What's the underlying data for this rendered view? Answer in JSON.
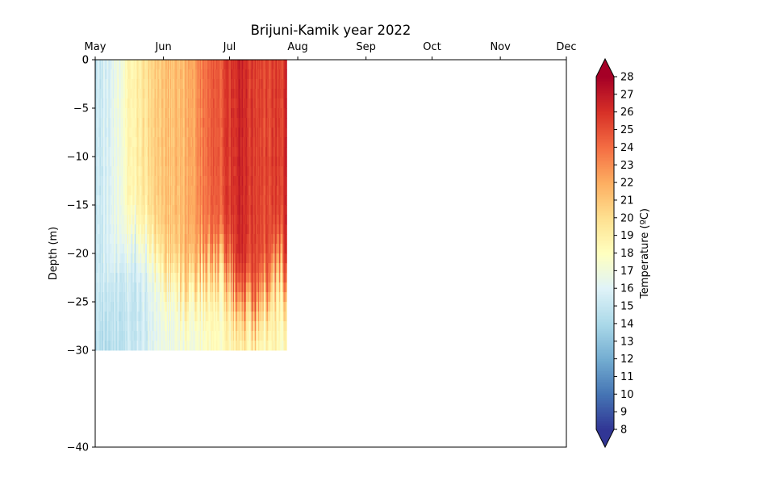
{
  "chart_data": {
    "type": "heatmap",
    "title": "Brijuni-Kamik year 2022",
    "ylabel": "Depth (m)",
    "colorbar_label": "Temperature (ºC)",
    "x_axis": {
      "position": "top",
      "tick_labels": [
        "May",
        "Jun",
        "Jul",
        "Aug",
        "Sep",
        "Oct",
        "Nov",
        "Dec"
      ],
      "tick_days_from_may1": [
        0,
        31,
        61,
        92,
        123,
        153,
        184,
        214
      ],
      "range_days": [
        0,
        214
      ]
    },
    "y_axis": {
      "range": [
        -40,
        0
      ],
      "ticks": [
        0,
        -5,
        -10,
        -15,
        -20,
        -25,
        -30,
        -40
      ],
      "tick_labels": [
        "0",
        "−5",
        "−10",
        "−15",
        "−20",
        "−25",
        "−30",
        "−40"
      ],
      "extra_top_label": "0"
    },
    "colorbar": {
      "range": [
        8,
        28
      ],
      "ticks": [
        "8",
        "9",
        "10",
        "11",
        "12",
        "13",
        "14",
        "15",
        "16",
        "17",
        "18",
        "19",
        "20",
        "21",
        "22",
        "23",
        "24",
        "25",
        "26",
        "27",
        "28"
      ],
      "extend": "both",
      "colormap": "RdYlBu_r",
      "colors": [
        "#313695",
        "#4575b4",
        "#74add1",
        "#abd9e9",
        "#e0f3f8",
        "#ffffbf",
        "#fee090",
        "#fdae61",
        "#f46d43",
        "#d73027",
        "#a50026"
      ]
    },
    "data_extent": {
      "day_start": 0,
      "day_end": 87,
      "depth_min": -30,
      "depth_max": 0
    },
    "profiles": [
      {
        "day": 0,
        "surface": 14.5,
        "bottom": 13.8,
        "thermocline": -30,
        "dt": 0.5
      },
      {
        "day": 10,
        "surface": 16.5,
        "bottom": 14.5,
        "thermocline": -20,
        "dt": 1.0
      },
      {
        "day": 18,
        "surface": 19.0,
        "bottom": 15.0,
        "thermocline": -18,
        "dt": 2.0
      },
      {
        "day": 30,
        "surface": 21.0,
        "bottom": 16.5,
        "thermocline": -22,
        "dt": 3.0
      },
      {
        "day": 40,
        "surface": 21.5,
        "bottom": 17.0,
        "thermocline": -24,
        "dt": 3.0
      },
      {
        "day": 48,
        "surface": 23.5,
        "bottom": 17.5,
        "thermocline": -22,
        "dt": 4.5
      },
      {
        "day": 58,
        "surface": 25.0,
        "bottom": 18.0,
        "thermocline": -21,
        "dt": 5.0
      },
      {
        "day": 66,
        "surface": 26.3,
        "bottom": 18.5,
        "thermocline": -25,
        "dt": 5.0
      },
      {
        "day": 75,
        "surface": 25.3,
        "bottom": 18.0,
        "thermocline": -26,
        "dt": 5.0
      },
      {
        "day": 82,
        "surface": 25.5,
        "bottom": 18.5,
        "thermocline": -22,
        "dt": 4.5
      },
      {
        "day": 87,
        "surface": 26.0,
        "bottom": 18.0,
        "thermocline": -22,
        "dt": 4.5
      }
    ]
  }
}
